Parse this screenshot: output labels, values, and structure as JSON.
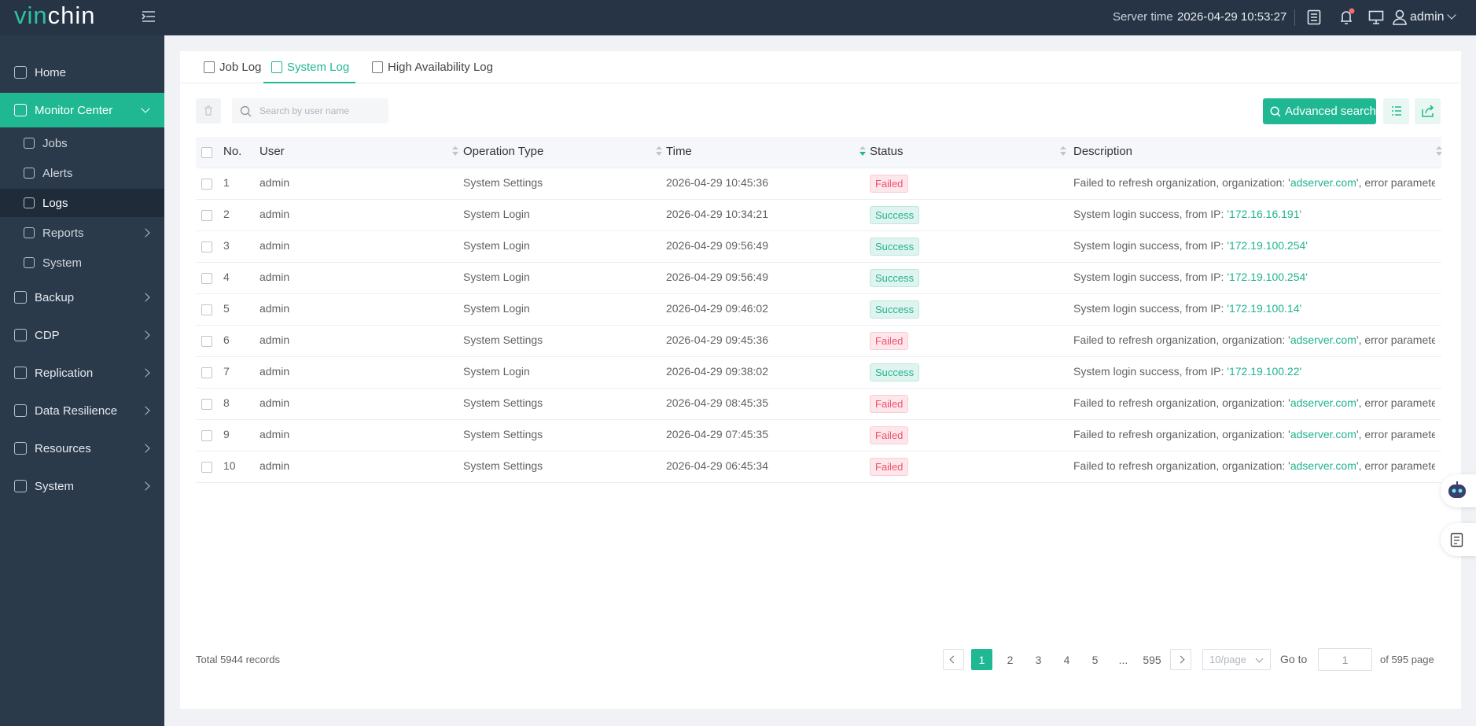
{
  "header": {
    "logo": "vinchin",
    "server_time_label": "Server time",
    "server_time": "2026-04-29 10:53:27",
    "user": "admin"
  },
  "sidebar": {
    "items": [
      {
        "label": "Home"
      },
      {
        "label": "Monitor Center",
        "expanded": true,
        "children": [
          {
            "label": "Jobs"
          },
          {
            "label": "Alerts"
          },
          {
            "label": "Logs",
            "selected": true
          },
          {
            "label": "Reports",
            "has_arrow": true
          },
          {
            "label": "System"
          }
        ]
      },
      {
        "label": "Backup",
        "has_arrow": true
      },
      {
        "label": "CDP",
        "has_arrow": true
      },
      {
        "label": "Replication",
        "has_arrow": true
      },
      {
        "label": "Data Resilience",
        "has_arrow": true
      },
      {
        "label": "Resources",
        "has_arrow": true
      },
      {
        "label": "System",
        "has_arrow": true
      }
    ]
  },
  "tabs": [
    {
      "label": "Job Log"
    },
    {
      "label": "System Log",
      "active": true
    },
    {
      "label": "High Availability Log"
    }
  ],
  "toolbar": {
    "search_placeholder": "Search by user name",
    "advanced_search": "Advanced search"
  },
  "table": {
    "columns": [
      "No.",
      "User",
      "Operation Type",
      "Time",
      "Status",
      "Description"
    ],
    "rows": [
      {
        "no": 1,
        "user": "admin",
        "operation": "System Settings",
        "time": "2026-04-29 10:45:36",
        "status": "Failed",
        "status_color": "#f0506e",
        "description": [
          {
            "text": "Failed to refresh organization, organization: '"
          },
          {
            "text": "adserver.com",
            "color": "#21b38e"
          },
          {
            "text": "', error parameter: '…"
          }
        ]
      },
      {
        "no": 2,
        "user": "admin",
        "operation": "System Login",
        "time": "2026-04-29 10:34:21",
        "status": "Success",
        "status_color": "#21b38e",
        "description": [
          {
            "text": "System login success, from IP: "
          },
          {
            "text": "'172.16.16.191'",
            "color": "#21b38e"
          }
        ]
      },
      {
        "no": 3,
        "user": "admin",
        "operation": "System Login",
        "time": "2026-04-29 09:56:49",
        "status": "Success",
        "status_color": "#21b38e",
        "description": [
          {
            "text": "System login success, from IP: "
          },
          {
            "text": "'172.19.100.254'",
            "color": "#21b38e"
          }
        ]
      },
      {
        "no": 4,
        "user": "admin",
        "operation": "System Login",
        "time": "2026-04-29 09:56:49",
        "status": "Success",
        "status_color": "#21b38e",
        "description": [
          {
            "text": "System login success, from IP: "
          },
          {
            "text": "'172.19.100.254'",
            "color": "#21b38e"
          }
        ]
      },
      {
        "no": 5,
        "user": "admin",
        "operation": "System Login",
        "time": "2026-04-29 09:46:02",
        "status": "Success",
        "status_color": "#21b38e",
        "description": [
          {
            "text": "System login success, from IP: "
          },
          {
            "text": "'172.19.100.14'",
            "color": "#21b38e"
          }
        ]
      },
      {
        "no": 6,
        "user": "admin",
        "operation": "System Settings",
        "time": "2026-04-29 09:45:36",
        "status": "Failed",
        "status_color": "#f0506e",
        "description": [
          {
            "text": "Failed to refresh organization, organization: '"
          },
          {
            "text": "adserver.com",
            "color": "#21b38e"
          },
          {
            "text": "', error parameter: '…"
          }
        ]
      },
      {
        "no": 7,
        "user": "admin",
        "operation": "System Login",
        "time": "2026-04-29 09:38:02",
        "status": "Success",
        "status_color": "#21b38e",
        "description": [
          {
            "text": "System login success, from IP: "
          },
          {
            "text": "'172.19.100.22'",
            "color": "#21b38e"
          }
        ]
      },
      {
        "no": 8,
        "user": "admin",
        "operation": "System Settings",
        "time": "2026-04-29 08:45:35",
        "status": "Failed",
        "status_color": "#f0506e",
        "description": [
          {
            "text": "Failed to refresh organization, organization: '"
          },
          {
            "text": "adserver.com",
            "color": "#21b38e"
          },
          {
            "text": "', error parameter: '…"
          }
        ]
      },
      {
        "no": 9,
        "user": "admin",
        "operation": "System Settings",
        "time": "2026-04-29 07:45:35",
        "status": "Failed",
        "status_color": "#f0506e",
        "description": [
          {
            "text": "Failed to refresh organization, organization: '"
          },
          {
            "text": "adserver.com",
            "color": "#21b38e"
          },
          {
            "text": "', error parameter: '…"
          }
        ]
      },
      {
        "no": 10,
        "user": "admin",
        "operation": "System Settings",
        "time": "2026-04-29 06:45:34",
        "status": "Failed",
        "status_color": "#f0506e",
        "description": [
          {
            "text": "Failed to refresh organization, organization: '"
          },
          {
            "text": "adserver.com",
            "color": "#21b38e"
          },
          {
            "text": "', error parameter: '…"
          }
        ]
      }
    ]
  },
  "pagination": {
    "total": "Total 5944 records",
    "pages": [
      "1",
      "2",
      "3",
      "4",
      "5",
      "...",
      "595"
    ],
    "page_size": "10/page",
    "goto": "Go to",
    "goto_value": "1",
    "of_pages": "of 595 page"
  }
}
